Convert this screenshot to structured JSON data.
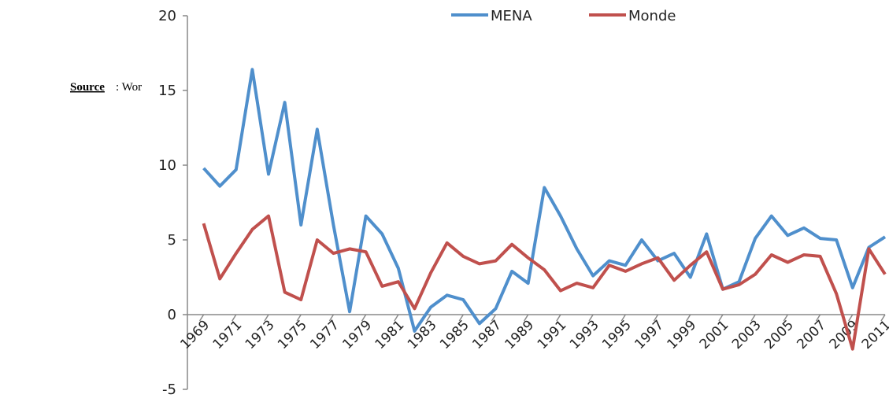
{
  "annotation": {
    "source": "Source",
    "text": ": Wor"
  },
  "chart_data": {
    "type": "line",
    "x": [
      1969,
      1970,
      1971,
      1972,
      1973,
      1974,
      1975,
      1976,
      1977,
      1978,
      1979,
      1980,
      1981,
      1982,
      1983,
      1984,
      1985,
      1986,
      1987,
      1988,
      1989,
      1990,
      1991,
      1992,
      1993,
      1994,
      1995,
      1996,
      1997,
      1998,
      1999,
      2000,
      2001,
      2002,
      2003,
      2004,
      2005,
      2006,
      2007,
      2008,
      2009,
      2010,
      2011
    ],
    "series": [
      {
        "name": "MENA",
        "color": "#4f8fcc",
        "values": [
          9.8,
          8.6,
          9.7,
          16.4,
          9.4,
          14.2,
          6.0,
          12.4,
          6.0,
          0.2,
          6.6,
          5.4,
          3.1,
          -1.1,
          0.5,
          1.3,
          1.0,
          -0.6,
          0.4,
          2.9,
          2.1,
          8.5,
          6.6,
          4.4,
          2.6,
          3.6,
          3.3,
          5.0,
          3.6,
          4.1,
          2.5,
          5.4,
          1.7,
          2.2,
          5.1,
          6.6,
          5.3,
          5.8,
          5.1,
          5.0,
          1.8,
          4.5,
          5.2
        ]
      },
      {
        "name": "Monde",
        "color": "#c0504d",
        "values": [
          6.1,
          2.4,
          4.1,
          5.7,
          6.6,
          1.5,
          1.0,
          5.0,
          4.1,
          4.4,
          4.2,
          1.9,
          2.2,
          0.4,
          2.8,
          4.8,
          3.9,
          3.4,
          3.6,
          4.7,
          3.8,
          3.0,
          1.6,
          2.1,
          1.8,
          3.3,
          2.9,
          3.4,
          3.8,
          2.3,
          3.3,
          4.2,
          1.7,
          2.0,
          2.7,
          4.0,
          3.5,
          4.0,
          3.9,
          1.4,
          -2.3,
          4.4,
          2.7
        ]
      }
    ],
    "xlim": [
      1968,
      2011
    ],
    "xticks": [
      1969,
      1971,
      1973,
      1975,
      1977,
      1979,
      1981,
      1983,
      1985,
      1987,
      1989,
      1991,
      1993,
      1995,
      1997,
      1999,
      2001,
      2003,
      2005,
      2007,
      2009,
      2011
    ],
    "ylim": [
      -5,
      20
    ],
    "yticks": [
      20,
      15,
      10,
      5,
      0,
      -5
    ],
    "legend": "top"
  }
}
